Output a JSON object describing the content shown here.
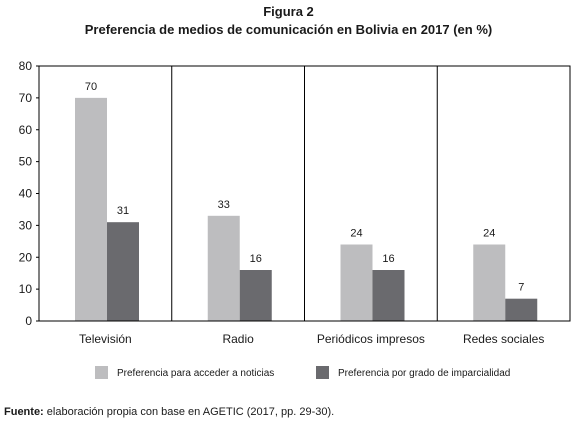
{
  "figure": {
    "label": "Figura 2",
    "title": "Preferencia de medios de comunicación en Bolivia en 2017 (en %)"
  },
  "chart_data": {
    "type": "bar",
    "categories": [
      "Televisión",
      "Radio",
      "Periódicos impresos",
      "Redes sociales"
    ],
    "series": [
      {
        "name": "Preferencia para acceder a noticias",
        "values": [
          70,
          33,
          24,
          24
        ],
        "color": "#bdbdbf"
      },
      {
        "name": "Preferencia por grado de imparcialidad",
        "values": [
          31,
          16,
          16,
          7
        ],
        "color": "#6a6a6e"
      }
    ],
    "ylim": [
      0,
      80
    ],
    "yticks": [
      0,
      10,
      20,
      30,
      40,
      50,
      60,
      70,
      80
    ],
    "grid": "vertical-category-dividers",
    "legend": "bottom"
  },
  "source": {
    "label": "Fuente:",
    "text": " elaboración propia con base en AGETIC (2017, pp. 29-30)."
  }
}
